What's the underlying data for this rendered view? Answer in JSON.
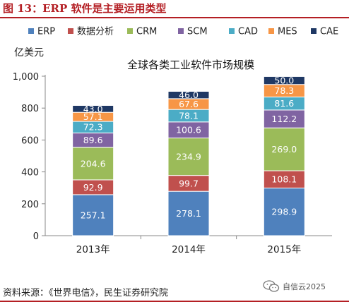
{
  "figure_title": "图 13：ERP 软件是主要运用类型",
  "source_note": "资料来源：《世界电信》，民生证券研究院",
  "watermark": "自信云2025",
  "watermark_icon": "wechat-icon",
  "chart_data": {
    "type": "bar",
    "stacked": true,
    "title": "全球各类工业软件市场规模",
    "ylabel": "亿美元",
    "xlabel": "",
    "ylim": [
      0,
      1000
    ],
    "yticks": [
      0,
      200,
      400,
      600,
      800,
      1000
    ],
    "ytick_labels": [
      "0",
      "200",
      "400",
      "600",
      "800",
      "1,000"
    ],
    "grid": false,
    "legend_position": "top",
    "categories": [
      "2013年",
      "2014年",
      "2015年"
    ],
    "series": [
      {
        "name": "ERP",
        "color": "#4f81bd",
        "values": [
          257.1,
          278.1,
          298.9
        ],
        "labels": [
          "257.1",
          "278.1",
          "298.9"
        ]
      },
      {
        "name": "数据分析",
        "color": "#c0504d",
        "values": [
          92.9,
          99.7,
          108.1
        ],
        "labels": [
          "92.9",
          "99.7",
          "108.1"
        ]
      },
      {
        "name": "CRM",
        "color": "#9bbb59",
        "values": [
          204.6,
          234.9,
          269.0
        ],
        "labels": [
          "204.6",
          "234.9",
          "269.0"
        ]
      },
      {
        "name": "SCM",
        "color": "#8064a2",
        "values": [
          89.6,
          100.6,
          112.2
        ],
        "labels": [
          "89.6",
          "100.6",
          "112.2"
        ]
      },
      {
        "name": "CAD",
        "color": "#4bacc6",
        "values": [
          72.3,
          78.1,
          81.6
        ],
        "labels": [
          "72.3",
          "78.1",
          "81.6"
        ]
      },
      {
        "name": "MES",
        "color": "#f79646",
        "values": [
          57.1,
          67.6,
          78.3
        ],
        "labels": [
          "57.1",
          "67.6",
          "78.3"
        ]
      },
      {
        "name": "CAE",
        "color": "#1f3864",
        "values": [
          43.0,
          46.0,
          50.0
        ],
        "labels": [
          "43.0",
          "46.0",
          "50.0"
        ]
      }
    ]
  }
}
